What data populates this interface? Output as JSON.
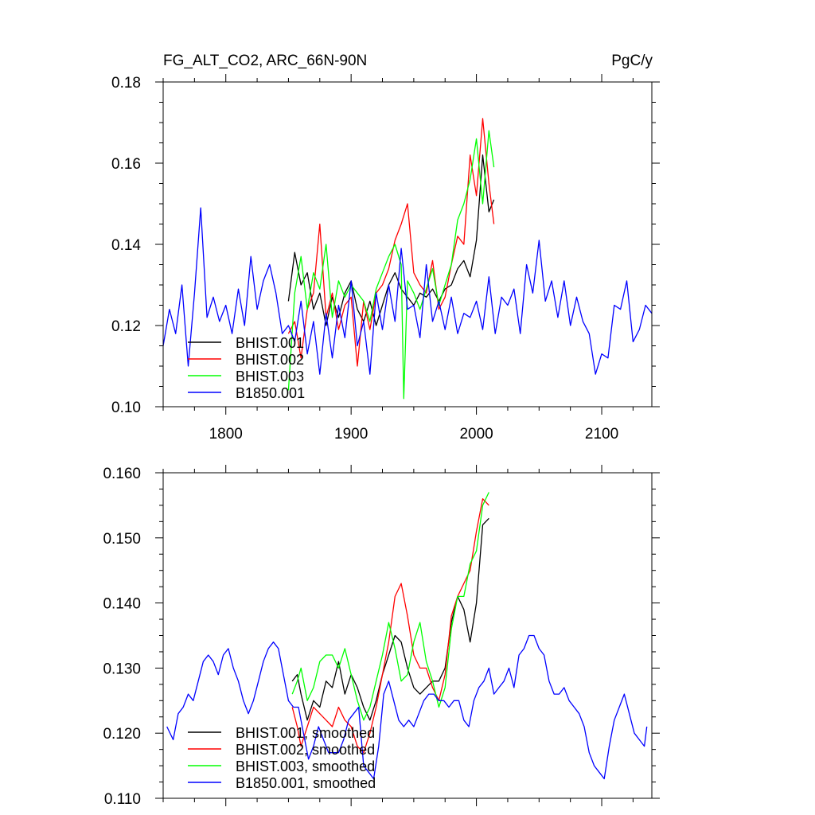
{
  "chart_data": [
    {
      "type": "line",
      "title": "FG_ALT_CO2, ARC_66N-90N",
      "units": "PgC/y",
      "xlim": [
        1750,
        2140
      ],
      "ylim": [
        0.1,
        0.18
      ],
      "xticks": [
        1800,
        1900,
        2000,
        2100
      ],
      "xtick_labels": [
        "1800",
        "1900",
        "2000",
        "2100"
      ],
      "yticks": [
        0.1,
        0.12,
        0.14,
        0.16,
        0.18
      ],
      "ytick_labels": [
        "0.10",
        "0.12",
        "0.14",
        "0.16",
        "0.18"
      ],
      "legend": "bottom-left",
      "series": [
        {
          "name": "BHIST.001",
          "color": "#000000",
          "x": [
            1850,
            1855,
            1860,
            1865,
            1870,
            1875,
            1880,
            1885,
            1890,
            1895,
            1900,
            1905,
            1910,
            1915,
            1920,
            1925,
            1930,
            1935,
            1940,
            1945,
            1950,
            1955,
            1960,
            1965,
            1970,
            1975,
            1980,
            1985,
            1990,
            1995,
            2000,
            2005,
            2010,
            2014
          ],
          "y": [
            0.126,
            0.138,
            0.13,
            0.133,
            0.124,
            0.128,
            0.12,
            0.127,
            0.122,
            0.128,
            0.131,
            0.124,
            0.121,
            0.126,
            0.12,
            0.125,
            0.13,
            0.133,
            0.129,
            0.127,
            0.125,
            0.128,
            0.127,
            0.129,
            0.126,
            0.129,
            0.13,
            0.134,
            0.136,
            0.132,
            0.141,
            0.162,
            0.148,
            0.151
          ]
        },
        {
          "name": "BHIST.002",
          "color": "#ff0000",
          "x": [
            1850,
            1855,
            1860,
            1865,
            1870,
            1875,
            1880,
            1885,
            1890,
            1895,
            1900,
            1905,
            1910,
            1915,
            1920,
            1925,
            1930,
            1935,
            1940,
            1945,
            1950,
            1955,
            1960,
            1965,
            1970,
            1975,
            1980,
            1985,
            1990,
            1995,
            2000,
            2005,
            2010,
            2014
          ],
          "y": [
            0.118,
            0.121,
            0.112,
            0.124,
            0.128,
            0.145,
            0.122,
            0.128,
            0.119,
            0.125,
            0.127,
            0.11,
            0.126,
            0.119,
            0.128,
            0.13,
            0.134,
            0.141,
            0.145,
            0.15,
            0.133,
            0.13,
            0.128,
            0.136,
            0.124,
            0.127,
            0.135,
            0.142,
            0.14,
            0.162,
            0.152,
            0.171,
            0.155,
            0.145
          ]
        },
        {
          "name": "BHIST.003",
          "color": "#00ff00",
          "x": [
            1850,
            1855,
            1860,
            1865,
            1870,
            1875,
            1880,
            1885,
            1890,
            1895,
            1900,
            1905,
            1910,
            1915,
            1920,
            1925,
            1930,
            1935,
            1940,
            1942,
            1945,
            1950,
            1955,
            1960,
            1965,
            1970,
            1975,
            1980,
            1985,
            1990,
            1995,
            2000,
            2005,
            2010,
            2014
          ],
          "y": [
            0.104,
            0.128,
            0.137,
            0.124,
            0.133,
            0.129,
            0.14,
            0.122,
            0.131,
            0.127,
            0.13,
            0.128,
            0.126,
            0.121,
            0.129,
            0.133,
            0.137,
            0.14,
            0.135,
            0.102,
            0.131,
            0.128,
            0.124,
            0.129,
            0.134,
            0.125,
            0.13,
            0.135,
            0.146,
            0.15,
            0.156,
            0.166,
            0.15,
            0.168,
            0.159
          ]
        },
        {
          "name": "B1850.001",
          "color": "#0000ff",
          "x": [
            1750,
            1755,
            1760,
            1765,
            1770,
            1775,
            1780,
            1785,
            1790,
            1795,
            1800,
            1805,
            1810,
            1815,
            1820,
            1825,
            1830,
            1835,
            1840,
            1845,
            1850,
            1855,
            1860,
            1865,
            1870,
            1875,
            1880,
            1885,
            1890,
            1895,
            1900,
            1905,
            1910,
            1915,
            1920,
            1925,
            1930,
            1935,
            1940,
            1945,
            1950,
            1955,
            1960,
            1965,
            1970,
            1975,
            1980,
            1985,
            1990,
            1995,
            2000,
            2005,
            2010,
            2015,
            2020,
            2025,
            2030,
            2035,
            2040,
            2045,
            2050,
            2055,
            2060,
            2065,
            2070,
            2075,
            2080,
            2085,
            2090,
            2095,
            2100,
            2105,
            2110,
            2115,
            2120,
            2125,
            2130,
            2135,
            2140
          ],
          "y": [
            0.115,
            0.124,
            0.118,
            0.13,
            0.11,
            0.128,
            0.149,
            0.122,
            0.127,
            0.121,
            0.125,
            0.118,
            0.129,
            0.12,
            0.137,
            0.124,
            0.131,
            0.135,
            0.128,
            0.118,
            0.12,
            0.116,
            0.126,
            0.113,
            0.121,
            0.108,
            0.123,
            0.112,
            0.125,
            0.117,
            0.131,
            0.115,
            0.121,
            0.108,
            0.128,
            0.119,
            0.13,
            0.121,
            0.139,
            0.124,
            0.125,
            0.117,
            0.135,
            0.121,
            0.126,
            0.119,
            0.127,
            0.118,
            0.123,
            0.122,
            0.126,
            0.119,
            0.132,
            0.118,
            0.127,
            0.125,
            0.129,
            0.118,
            0.135,
            0.128,
            0.141,
            0.126,
            0.131,
            0.122,
            0.131,
            0.12,
            0.127,
            0.121,
            0.118,
            0.108,
            0.113,
            0.112,
            0.125,
            0.124,
            0.131,
            0.116,
            0.119,
            0.125,
            0.123
          ]
        }
      ]
    },
    {
      "type": "line",
      "xlim": [
        1750,
        2140
      ],
      "ylim": [
        0.11,
        0.16
      ],
      "xticks": [
        1800,
        1900,
        2000,
        2100
      ],
      "yticks": [
        0.11,
        0.12,
        0.13,
        0.14,
        0.15,
        0.16
      ],
      "ytick_labels": [
        "0.110",
        "0.120",
        "0.130",
        "0.140",
        "0.150",
        "0.160"
      ],
      "legend": "bottom-left",
      "series": [
        {
          "name": "BHIST.001, smoothed",
          "color": "#000000",
          "x": [
            1853,
            1857,
            1860,
            1865,
            1870,
            1875,
            1880,
            1885,
            1890,
            1895,
            1900,
            1905,
            1910,
            1915,
            1920,
            1925,
            1930,
            1935,
            1940,
            1945,
            1950,
            1955,
            1960,
            1965,
            1970,
            1975,
            1980,
            1985,
            1990,
            1995,
            2000,
            2005,
            2010
          ],
          "y": [
            0.128,
            0.129,
            0.126,
            0.122,
            0.125,
            0.124,
            0.128,
            0.127,
            0.131,
            0.126,
            0.129,
            0.127,
            0.124,
            0.122,
            0.125,
            0.129,
            0.132,
            0.135,
            0.134,
            0.13,
            0.127,
            0.126,
            0.127,
            0.128,
            0.128,
            0.13,
            0.137,
            0.141,
            0.139,
            0.134,
            0.14,
            0.152,
            0.153
          ]
        },
        {
          "name": "BHIST.002, smoothed",
          "color": "#ff0000",
          "x": [
            1853,
            1857,
            1860,
            1865,
            1870,
            1875,
            1880,
            1885,
            1890,
            1895,
            1900,
            1905,
            1910,
            1915,
            1920,
            1925,
            1930,
            1935,
            1940,
            1945,
            1950,
            1955,
            1960,
            1965,
            1970,
            1975,
            1980,
            1985,
            1990,
            1995,
            2000,
            2005,
            2010
          ],
          "y": [
            0.124,
            0.121,
            0.118,
            0.121,
            0.124,
            0.123,
            0.122,
            0.121,
            0.124,
            0.122,
            0.121,
            0.118,
            0.117,
            0.12,
            0.124,
            0.129,
            0.134,
            0.141,
            0.143,
            0.138,
            0.132,
            0.13,
            0.13,
            0.127,
            0.125,
            0.129,
            0.138,
            0.141,
            0.143,
            0.145,
            0.151,
            0.156,
            0.155
          ]
        },
        {
          "name": "BHIST.003, smoothed",
          "color": "#00ff00",
          "x": [
            1853,
            1857,
            1860,
            1865,
            1870,
            1875,
            1880,
            1885,
            1890,
            1895,
            1900,
            1905,
            1910,
            1915,
            1920,
            1925,
            1930,
            1935,
            1940,
            1945,
            1950,
            1955,
            1960,
            1965,
            1970,
            1975,
            1980,
            1985,
            1990,
            1995,
            2000,
            2005,
            2010
          ],
          "y": [
            0.126,
            0.128,
            0.13,
            0.125,
            0.127,
            0.131,
            0.132,
            0.132,
            0.13,
            0.133,
            0.129,
            0.125,
            0.122,
            0.124,
            0.128,
            0.132,
            0.137,
            0.133,
            0.128,
            0.129,
            0.134,
            0.137,
            0.131,
            0.128,
            0.124,
            0.127,
            0.136,
            0.141,
            0.141,
            0.146,
            0.148,
            0.155,
            0.157
          ]
        },
        {
          "name": "B1850.001, smoothed",
          "color": "#0000ff",
          "x": [
            1753,
            1758,
            1762,
            1766,
            1770,
            1774,
            1778,
            1782,
            1786,
            1790,
            1794,
            1798,
            1802,
            1806,
            1810,
            1814,
            1818,
            1822,
            1826,
            1830,
            1834,
            1838,
            1842,
            1846,
            1850,
            1854,
            1858,
            1862,
            1866,
            1870,
            1874,
            1878,
            1882,
            1886,
            1890,
            1894,
            1898,
            1902,
            1906,
            1910,
            1914,
            1918,
            1922,
            1926,
            1930,
            1934,
            1938,
            1942,
            1946,
            1950,
            1954,
            1958,
            1962,
            1966,
            1970,
            1974,
            1978,
            1982,
            1986,
            1990,
            1994,
            1998,
            2002,
            2006,
            2010,
            2014,
            2018,
            2022,
            2026,
            2030,
            2034,
            2038,
            2042,
            2046,
            2050,
            2054,
            2058,
            2062,
            2066,
            2070,
            2074,
            2078,
            2082,
            2086,
            2090,
            2094,
            2098,
            2102,
            2106,
            2110,
            2114,
            2118,
            2122,
            2126,
            2130,
            2134,
            2136
          ],
          "y": [
            0.121,
            0.119,
            0.123,
            0.124,
            0.126,
            0.125,
            0.128,
            0.131,
            0.132,
            0.131,
            0.129,
            0.132,
            0.133,
            0.13,
            0.128,
            0.125,
            0.123,
            0.125,
            0.128,
            0.131,
            0.133,
            0.134,
            0.133,
            0.129,
            0.125,
            0.124,
            0.124,
            0.12,
            0.116,
            0.118,
            0.121,
            0.119,
            0.117,
            0.117,
            0.117,
            0.119,
            0.122,
            0.123,
            0.124,
            0.115,
            0.114,
            0.113,
            0.118,
            0.126,
            0.128,
            0.125,
            0.122,
            0.121,
            0.122,
            0.121,
            0.123,
            0.125,
            0.126,
            0.126,
            0.125,
            0.125,
            0.124,
            0.125,
            0.125,
            0.122,
            0.121,
            0.125,
            0.127,
            0.128,
            0.13,
            0.126,
            0.127,
            0.128,
            0.13,
            0.127,
            0.132,
            0.133,
            0.135,
            0.135,
            0.133,
            0.132,
            0.128,
            0.126,
            0.126,
            0.127,
            0.125,
            0.124,
            0.123,
            0.121,
            0.117,
            0.115,
            0.114,
            0.113,
            0.118,
            0.122,
            0.124,
            0.126,
            0.123,
            0.12,
            0.119,
            0.118,
            0.121
          ]
        }
      ]
    }
  ]
}
